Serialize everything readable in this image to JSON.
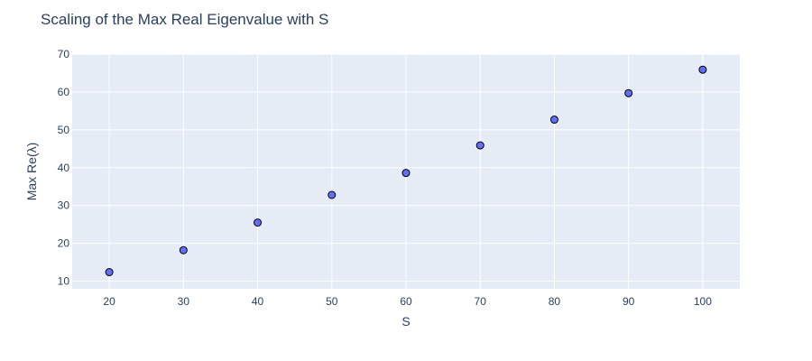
{
  "chart_data": {
    "type": "scatter",
    "title": "Scaling of the Max Real Eigenvalue with S",
    "xlabel": "S",
    "ylabel": "Max Re(λ)",
    "x": [
      20,
      30,
      40,
      50,
      60,
      70,
      80,
      90,
      100
    ],
    "y": [
      12.4,
      18.2,
      25.5,
      32.8,
      38.6,
      45.9,
      52.7,
      59.7,
      65.9
    ],
    "xlim": [
      15,
      105
    ],
    "ylim": [
      8,
      70
    ],
    "xticks": [
      20,
      30,
      40,
      50,
      60,
      70,
      80,
      90,
      100
    ],
    "yticks": [
      10,
      20,
      30,
      40,
      50,
      60,
      70
    ],
    "grid": true,
    "colors": {
      "plot_bg": "#e5ecf6",
      "grid": "#ffffff",
      "marker_fill": "#636efa",
      "marker_line": "#000000",
      "text": "#2a3f5f"
    }
  }
}
